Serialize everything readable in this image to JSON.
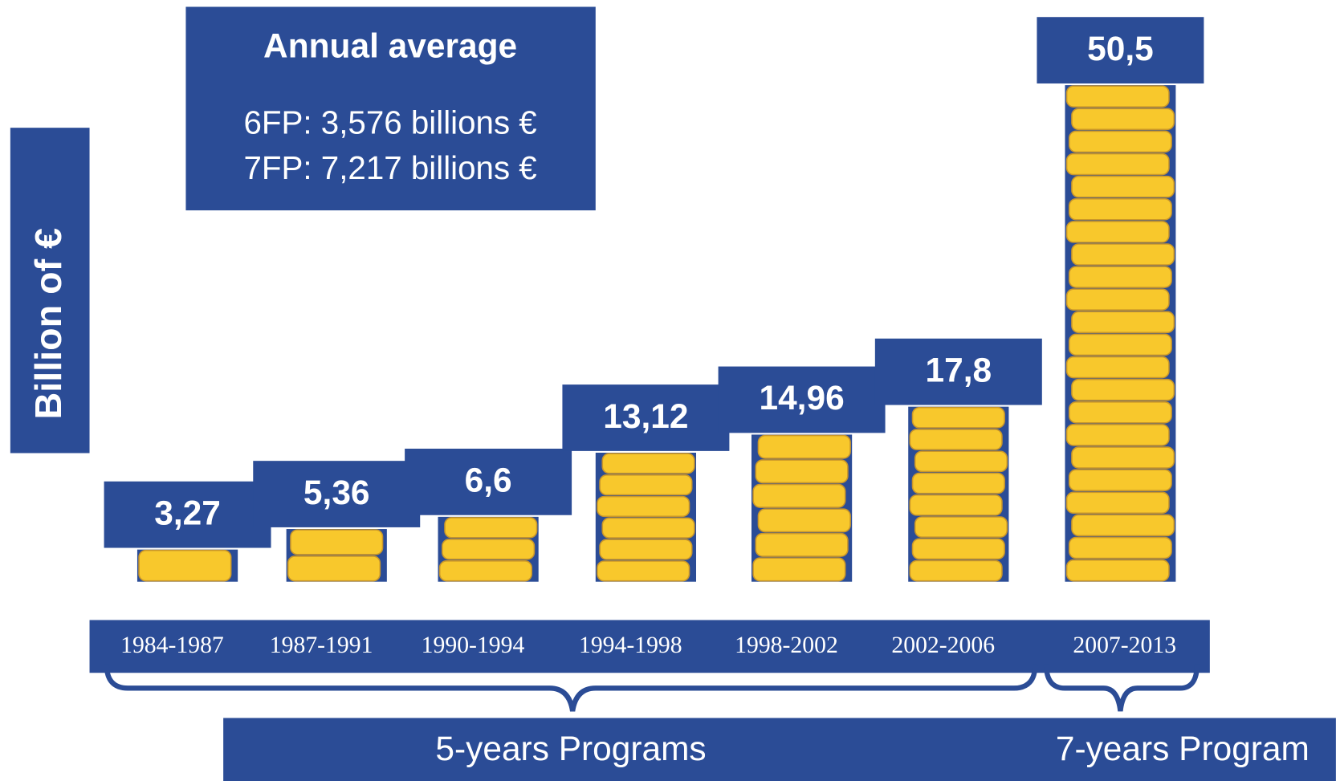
{
  "chart_data": {
    "type": "bar",
    "y_label": "Billion of €",
    "annotation_title": "Annual average",
    "annotations": [
      "6FP: 3,576 billions €",
      "7FP: 7,217 billions €"
    ],
    "categories": [
      "1984-1987",
      "1987-1991",
      "1990-1994",
      "1994-1998",
      "1998-2002",
      "2002-2006",
      "2007-2013"
    ],
    "values": [
      3.27,
      5.36,
      6.6,
      13.12,
      14.96,
      17.8,
      50.5
    ],
    "value_labels": [
      "3,27",
      "5,36",
      "6,6",
      "13,12",
      "14,96",
      "17,8",
      "50,5"
    ],
    "group_labels": [
      "5-years Programs",
      "7-years Program"
    ],
    "color": "#2b4c96",
    "coin_color": "#f8c82c"
  }
}
